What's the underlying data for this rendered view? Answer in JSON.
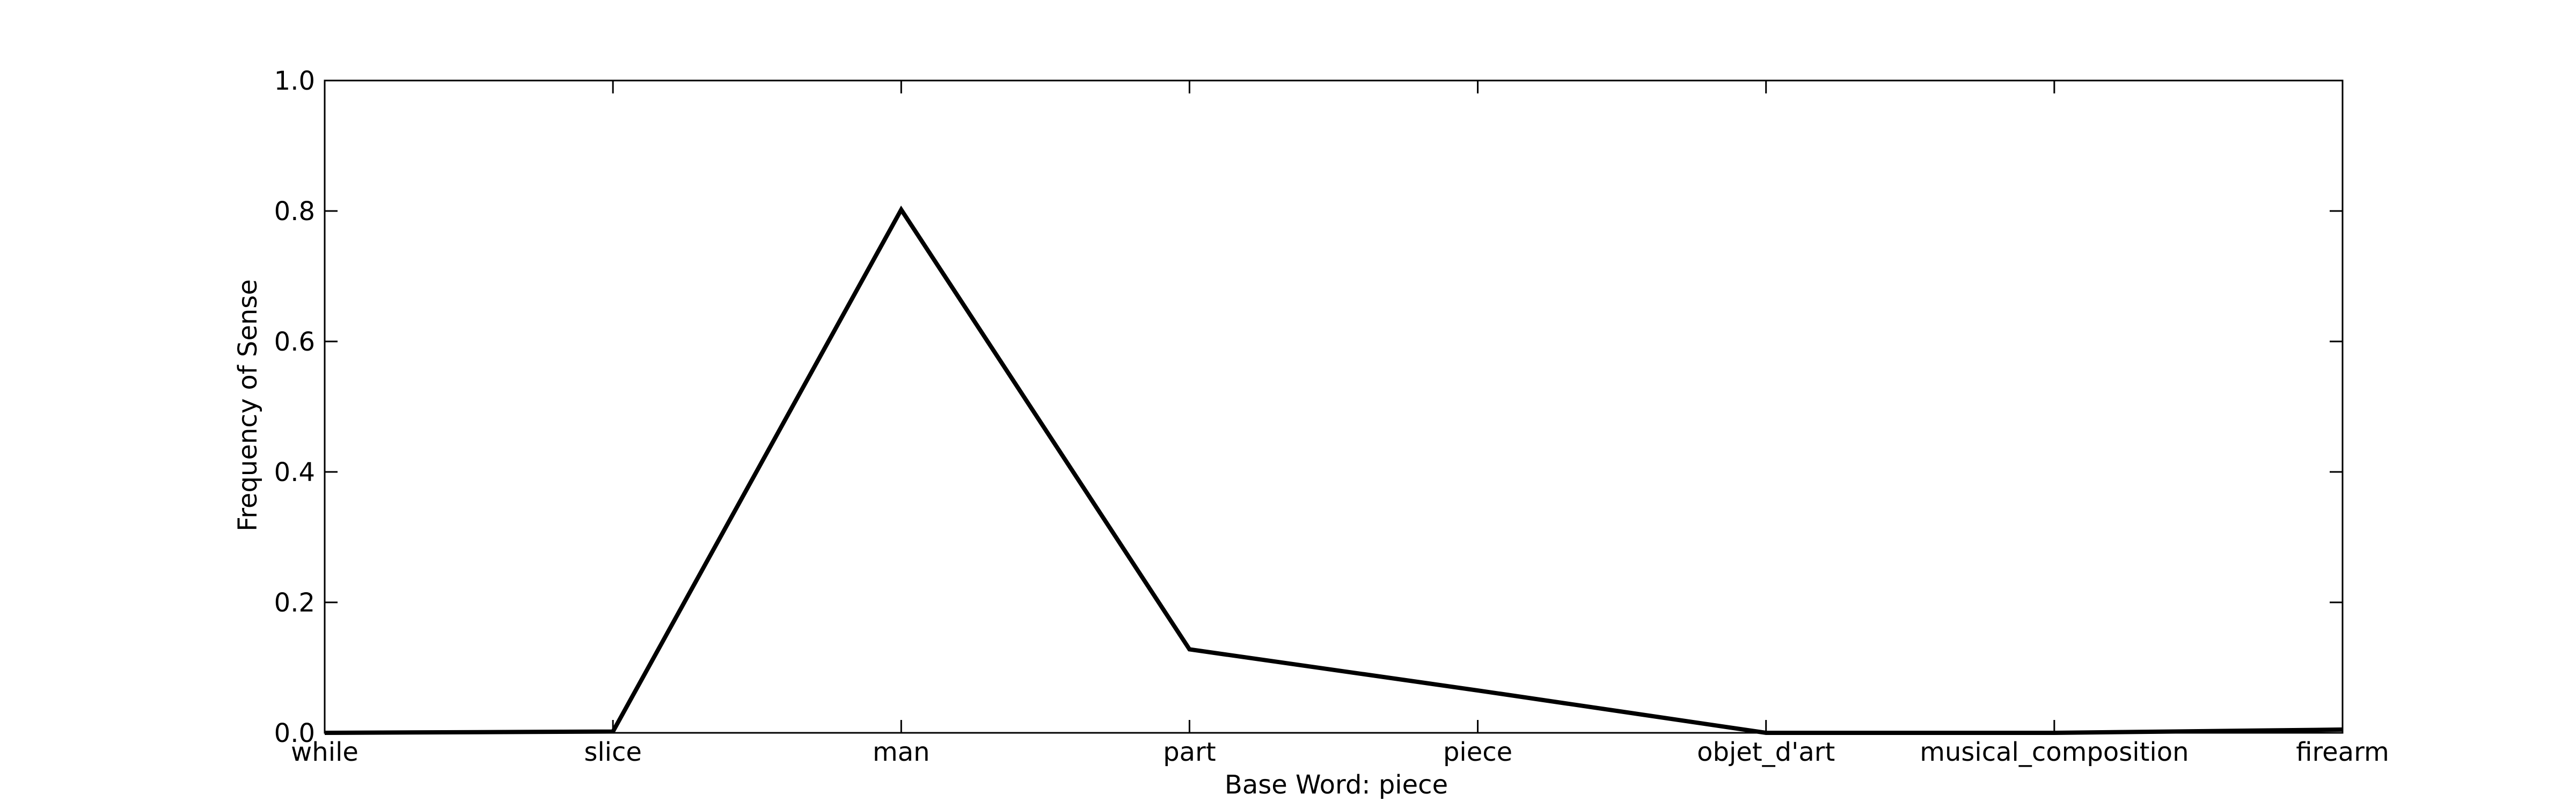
{
  "chart_data": {
    "type": "line",
    "categories": [
      "while",
      "slice",
      "man",
      "part",
      "piece",
      "objet_d'art",
      "musical_composition",
      "firearm"
    ],
    "series": [
      {
        "values": [
          0.0,
          0.002,
          0.802,
          0.128,
          0.065,
          0.0,
          0.0,
          0.005
        ]
      }
    ],
    "title": "",
    "xlabel": "Base Word: piece",
    "ylabel": "Frequency of Sense",
    "ylim": [
      0.0,
      1.0
    ],
    "yticks": [
      "0.0",
      "0.2",
      "0.4",
      "0.6",
      "0.8",
      "1.0"
    ],
    "grid": false,
    "line_color": "#000000"
  }
}
